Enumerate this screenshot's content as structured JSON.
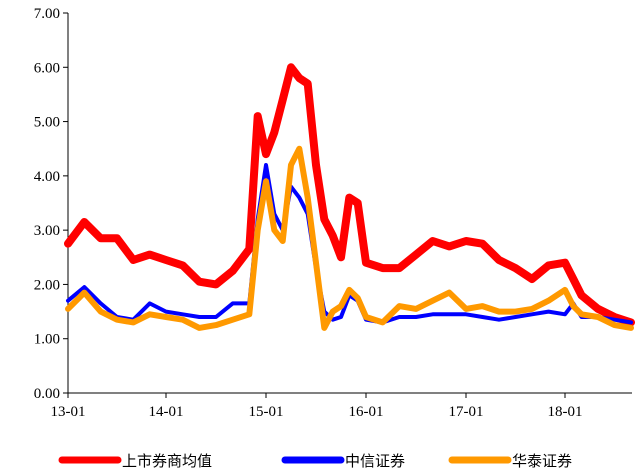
{
  "chart_data": {
    "type": "line",
    "title": "",
    "xlabel": "",
    "ylabel": "",
    "ylim": [
      0,
      7
    ],
    "y_ticks": [
      "0.00",
      "1.00",
      "2.00",
      "3.00",
      "4.00",
      "5.00",
      "6.00",
      "7.00"
    ],
    "x_ticks": [
      "13-01",
      "14-01",
      "15-01",
      "16-01",
      "17-01",
      "18-01"
    ],
    "x_range": [
      "2013-01",
      "2018-09"
    ],
    "grid": false,
    "legend_position": "bottom",
    "series": [
      {
        "name": "上市券商均值",
        "color": "#ff0000",
        "x": [
          "2013-01",
          "2013-03",
          "2013-05",
          "2013-07",
          "2013-09",
          "2013-11",
          "2014-01",
          "2014-03",
          "2014-05",
          "2014-07",
          "2014-09",
          "2014-11",
          "2014-12",
          "2015-01",
          "2015-02",
          "2015-03",
          "2015-04",
          "2015-05",
          "2015-06",
          "2015-07",
          "2015-08",
          "2015-09",
          "2015-10",
          "2015-11",
          "2015-12",
          "2016-01",
          "2016-03",
          "2016-05",
          "2016-07",
          "2016-09",
          "2016-11",
          "2017-01",
          "2017-03",
          "2017-05",
          "2017-07",
          "2017-09",
          "2017-11",
          "2018-01",
          "2018-02",
          "2018-03",
          "2018-05",
          "2018-07",
          "2018-09"
        ],
        "values": [
          2.75,
          3.15,
          2.85,
          2.85,
          2.45,
          2.55,
          2.45,
          2.35,
          2.05,
          2.0,
          2.25,
          2.65,
          5.1,
          4.4,
          4.8,
          5.4,
          6.0,
          5.8,
          5.7,
          4.2,
          3.2,
          2.9,
          2.5,
          3.6,
          3.5,
          2.4,
          2.3,
          2.3,
          2.55,
          2.8,
          2.7,
          2.8,
          2.75,
          2.45,
          2.3,
          2.1,
          2.35,
          2.4,
          2.1,
          1.8,
          1.55,
          1.4,
          1.3
        ]
      },
      {
        "name": "中信证券",
        "color": "#0000ff",
        "x": [
          "2013-01",
          "2013-03",
          "2013-05",
          "2013-07",
          "2013-09",
          "2013-11",
          "2014-01",
          "2014-03",
          "2014-05",
          "2014-07",
          "2014-09",
          "2014-11",
          "2014-12",
          "2015-01",
          "2015-02",
          "2015-03",
          "2015-04",
          "2015-05",
          "2015-06",
          "2015-07",
          "2015-08",
          "2015-09",
          "2015-10",
          "2015-11",
          "2015-12",
          "2016-01",
          "2016-03",
          "2016-05",
          "2016-07",
          "2016-09",
          "2016-11",
          "2017-01",
          "2017-03",
          "2017-05",
          "2017-07",
          "2017-09",
          "2017-11",
          "2018-01",
          "2018-02",
          "2018-03",
          "2018-05",
          "2018-07",
          "2018-09"
        ],
        "values": [
          1.7,
          1.95,
          1.65,
          1.4,
          1.35,
          1.65,
          1.5,
          1.45,
          1.4,
          1.4,
          1.65,
          1.65,
          3.2,
          4.2,
          3.3,
          3.0,
          3.8,
          3.6,
          3.3,
          2.3,
          1.5,
          1.35,
          1.4,
          1.8,
          1.7,
          1.35,
          1.3,
          1.4,
          1.4,
          1.45,
          1.45,
          1.45,
          1.4,
          1.35,
          1.4,
          1.45,
          1.5,
          1.45,
          1.65,
          1.4,
          1.4,
          1.35,
          1.3
        ]
      },
      {
        "name": "华泰证券",
        "color": "#ff9900",
        "x": [
          "2013-01",
          "2013-03",
          "2013-05",
          "2013-07",
          "2013-09",
          "2013-11",
          "2014-01",
          "2014-03",
          "2014-05",
          "2014-07",
          "2014-09",
          "2014-11",
          "2014-12",
          "2015-01",
          "2015-02",
          "2015-03",
          "2015-04",
          "2015-05",
          "2015-06",
          "2015-07",
          "2015-08",
          "2015-09",
          "2015-10",
          "2015-11",
          "2015-12",
          "2016-01",
          "2016-03",
          "2016-05",
          "2016-07",
          "2016-09",
          "2016-11",
          "2017-01",
          "2017-03",
          "2017-05",
          "2017-07",
          "2017-09",
          "2017-11",
          "2018-01",
          "2018-02",
          "2018-03",
          "2018-05",
          "2018-07",
          "2018-09"
        ],
        "values": [
          1.55,
          1.85,
          1.5,
          1.35,
          1.3,
          1.45,
          1.4,
          1.35,
          1.2,
          1.25,
          1.35,
          1.45,
          3.0,
          3.9,
          3.0,
          2.8,
          4.2,
          4.5,
          3.6,
          2.4,
          1.2,
          1.5,
          1.6,
          1.9,
          1.75,
          1.4,
          1.3,
          1.6,
          1.55,
          1.7,
          1.85,
          1.55,
          1.6,
          1.5,
          1.5,
          1.55,
          1.7,
          1.9,
          1.6,
          1.45,
          1.4,
          1.25,
          1.2
        ]
      }
    ]
  }
}
